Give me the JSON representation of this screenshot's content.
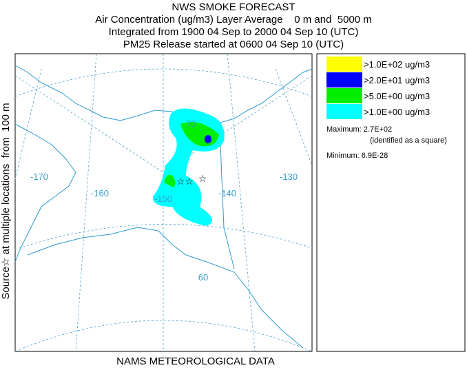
{
  "header": {
    "title": "NWS SMOKE FORECAST",
    "lines": [
      "Air Concentration (ug/m3) Layer Average    0 m and  5000 m",
      "Integrated from 1900 04 Sep to 2000 04 Sep 10 (UTC)",
      "PM25 Release started at 0600 04 Sep 10 (UTC)"
    ]
  },
  "side_label": "Source☆ at multiple locations  from  100 m",
  "legend": {
    "items": [
      {
        "label": ">1.0E+02 ug/m3",
        "color": "#ffff00"
      },
      {
        "label": ">2.0E+01 ug/m3",
        "color": "#0000ff"
      },
      {
        "label": ">5.0E+00 ug/m3",
        "color": "#00ee00"
      },
      {
        "label": ">1.0E+00 ug/m3",
        "color": "#00ffff"
      }
    ],
    "maximum": "Maximum: 2.7E+02",
    "max_note": "(identified as a square)",
    "minimum": "Minimum: 6.9E-28"
  },
  "map": {
    "labels": [
      "-170",
      "-160",
      "-150",
      "-140",
      "-130",
      "70",
      "60"
    ]
  },
  "footer": "NAMS METEOROLOGICAL DATA"
}
